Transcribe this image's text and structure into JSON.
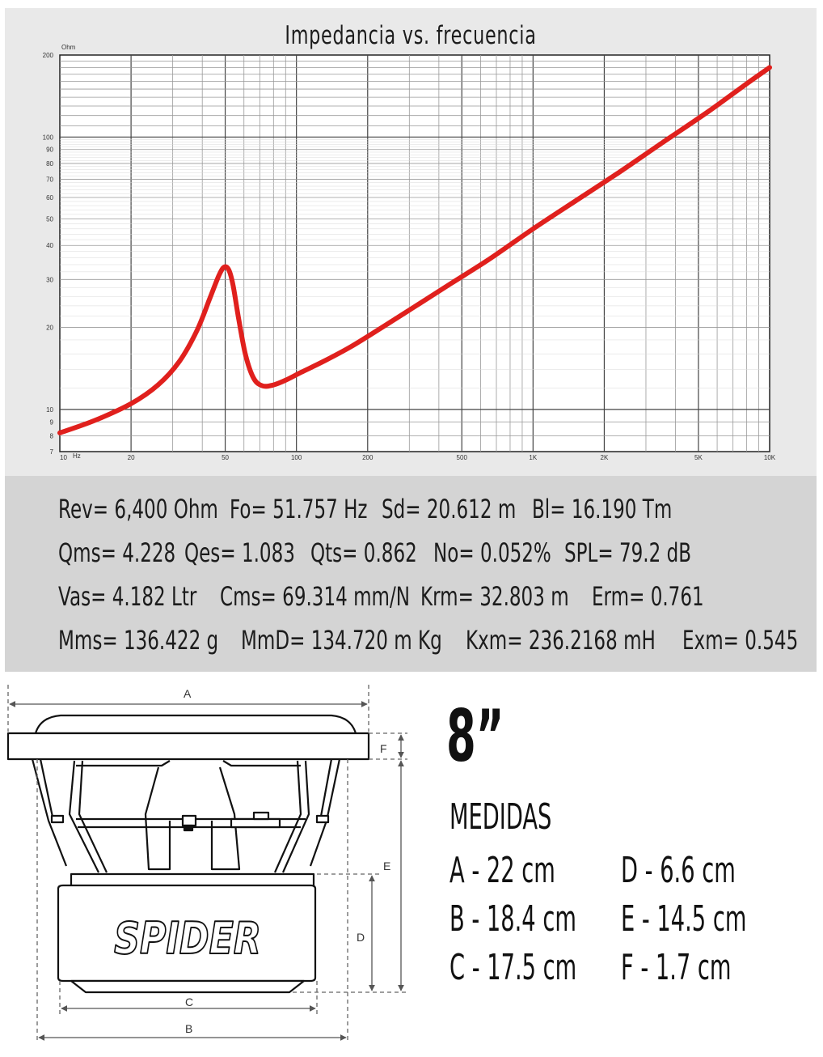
{
  "chart_data": {
    "type": "line",
    "title": "Impedancia vs. frecuencia",
    "ylabel": "Ohm",
    "xlabel": "Hz",
    "x_scale": "log",
    "y_scale": "log",
    "xlim": [
      10,
      10000
    ],
    "ylim": [
      7,
      200
    ],
    "x_ticks": [
      {
        "value": 10,
        "label": "10"
      },
      {
        "value": 20,
        "label": "20"
      },
      {
        "value": 50,
        "label": "50"
      },
      {
        "value": 100,
        "label": "100"
      },
      {
        "value": 200,
        "label": "200"
      },
      {
        "value": 500,
        "label": "500"
      },
      {
        "value": 1000,
        "label": "1K"
      },
      {
        "value": 2000,
        "label": "2K"
      },
      {
        "value": 5000,
        "label": "5K"
      },
      {
        "value": 10000,
        "label": "10K"
      }
    ],
    "y_ticks": [
      {
        "value": 7,
        "label": "7"
      },
      {
        "value": 8,
        "label": "8"
      },
      {
        "value": 9,
        "label": "9"
      },
      {
        "value": 10,
        "label": "10"
      },
      {
        "value": 20,
        "label": "20"
      },
      {
        "value": 30,
        "label": "30"
      },
      {
        "value": 40,
        "label": "40"
      },
      {
        "value": 50,
        "label": "50"
      },
      {
        "value": 60,
        "label": "60"
      },
      {
        "value": 70,
        "label": "70"
      },
      {
        "value": 80,
        "label": "80"
      },
      {
        "value": 90,
        "label": "90"
      },
      {
        "value": 100,
        "label": "100"
      },
      {
        "value": 200,
        "label": "200"
      }
    ],
    "grid": true,
    "series": [
      {
        "color": "#e0201d",
        "x": [
          10,
          14,
          20,
          26,
          32,
          38,
          43,
          47,
          49.5,
          51.8,
          54,
          57,
          61,
          66,
          72,
          80,
          90,
          105,
          130,
          170,
          230,
          320,
          450,
          650,
          1000,
          1500,
          2300,
          3500,
          5500,
          8000,
          10000
        ],
        "y": [
          8.2,
          9.1,
          10.5,
          12.3,
          15.0,
          19.5,
          25.5,
          31.0,
          33.3,
          32.5,
          28.5,
          21.5,
          15.8,
          13.0,
          12.2,
          12.3,
          12.8,
          13.7,
          15.0,
          17.0,
          20.0,
          24.0,
          29.0,
          35.5,
          46.0,
          58.0,
          74.0,
          95.0,
          124.0,
          157.0,
          180.0
        ]
      }
    ]
  },
  "parameters": [
    [
      "Rev= 6,400 Ohm",
      "Fo= 51.757 Hz",
      "Sd= 20.612 m",
      "Bl= 16.190 Tm"
    ],
    [
      "Qms= 4.228",
      "Qes= 1.083",
      "Qts= 0.862",
      "No= 0.052%",
      "SPL= 79.2 dB"
    ],
    [
      "Vas= 4.182 Ltr",
      "Cms= 69.314 mm/N",
      "Krm= 32.803 m",
      "Erm= 0.761"
    ],
    [
      "Mms= 136.422 g",
      "MmD= 134.720 m Kg",
      "Kxm= 236.2168 mH",
      "Exm= 0.545"
    ]
  ],
  "diagram": {
    "logo_text": "SPIDER",
    "dimension_letters": [
      "A",
      "B",
      "C",
      "D",
      "E",
      "F"
    ]
  },
  "size": "8”",
  "medidas": {
    "title": "MEDIDAS",
    "items": [
      "A - 22 cm",
      "B - 18.4 cm",
      "C - 17.5 cm",
      "D - 6.6 cm",
      "E - 14.5 cm",
      "F - 1.7 cm"
    ]
  }
}
